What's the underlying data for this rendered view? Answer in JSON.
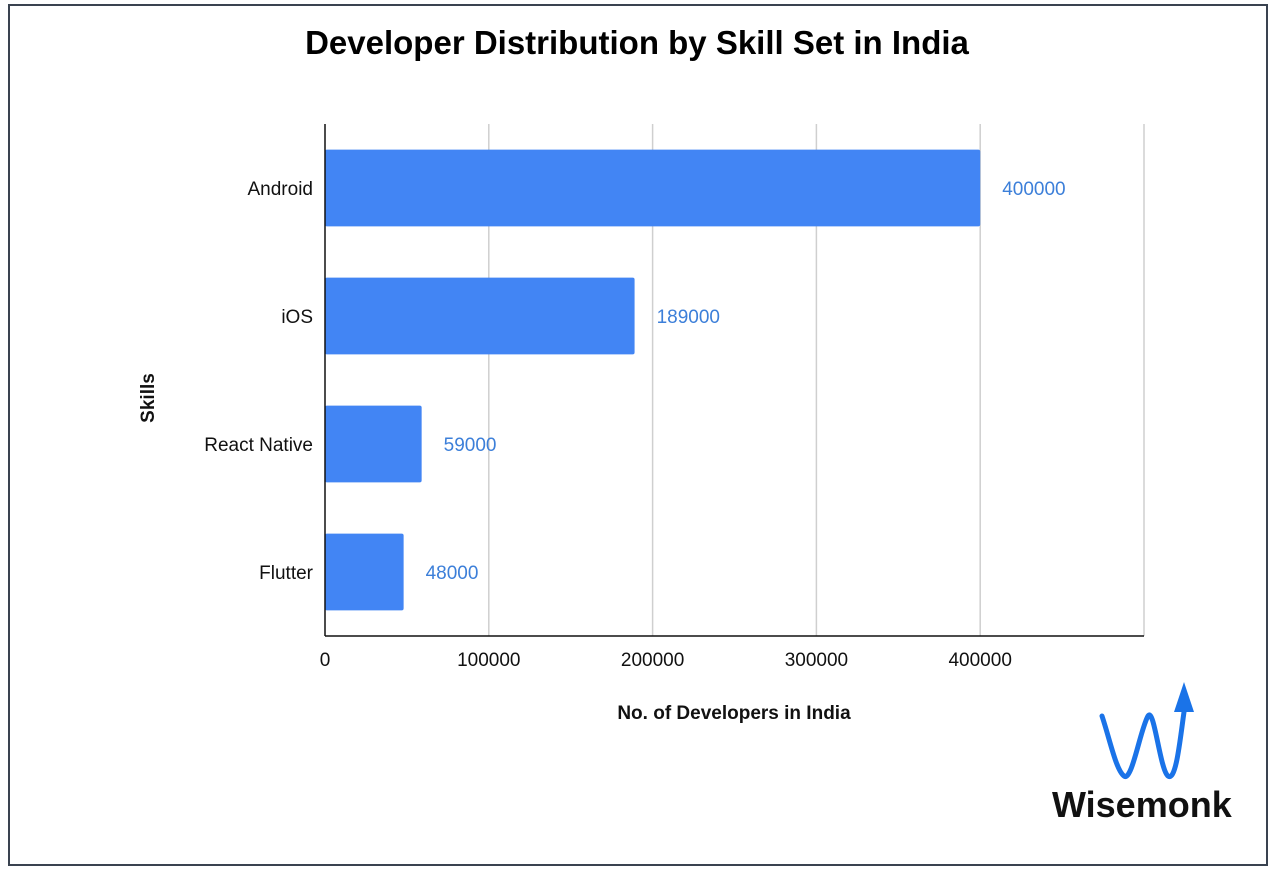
{
  "chart_data": {
    "type": "bar",
    "orientation": "horizontal",
    "title": "Developer Distribution by Skill Set in India",
    "xlabel": "No. of Developers in India",
    "ylabel": "Skills",
    "categories": [
      "Android",
      "iOS",
      "React Native",
      "Flutter"
    ],
    "values": [
      400000,
      189000,
      59000,
      48000
    ],
    "data_labels": [
      "400000",
      "189000",
      "59000",
      "48000"
    ],
    "xlim": [
      0,
      500000
    ],
    "xticks": [
      0,
      100000,
      200000,
      300000,
      400000
    ],
    "xtick_labels": [
      "0",
      "100000",
      "200000",
      "300000",
      "400000"
    ],
    "grid": "vertical",
    "legend": "none",
    "bar_color": "#4285f4",
    "label_color": "#3c7fd9"
  },
  "logo": {
    "text": "Wisemonk",
    "color": "#1a73e8"
  }
}
